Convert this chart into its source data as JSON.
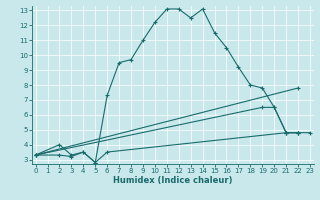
{
  "xlabel": "Humidex (Indice chaleur)",
  "xlim": [
    0,
    23
  ],
  "ylim": [
    3,
    13
  ],
  "yticks": [
    3,
    4,
    5,
    6,
    7,
    8,
    9,
    10,
    11,
    12,
    13
  ],
  "xticks": [
    0,
    1,
    2,
    3,
    4,
    5,
    6,
    7,
    8,
    9,
    10,
    11,
    12,
    13,
    14,
    15,
    16,
    17,
    18,
    19,
    20,
    21,
    22,
    23
  ],
  "bg_color": "#c8e8ec",
  "line_color": "#1a6b6b",
  "lines": [
    {
      "x": [
        0,
        2,
        3,
        4,
        5,
        6,
        7,
        8,
        9,
        10,
        11,
        12,
        13,
        14,
        15,
        16,
        17,
        18,
        19,
        20,
        21,
        22
      ],
      "y": [
        3.3,
        4.0,
        3.3,
        3.5,
        2.8,
        7.3,
        9.5,
        9.7,
        11.0,
        12.2,
        13.1,
        13.1,
        12.5,
        13.1,
        11.5,
        10.5,
        9.2,
        8.0,
        7.8,
        6.5,
        4.8,
        4.8
      ]
    },
    {
      "x": [
        0,
        22
      ],
      "y": [
        3.3,
        7.8
      ]
    },
    {
      "x": [
        0,
        19,
        20,
        21,
        22
      ],
      "y": [
        3.3,
        6.5,
        6.5,
        4.8,
        4.8
      ]
    },
    {
      "x": [
        0,
        2,
        3,
        4,
        5,
        6,
        21,
        22,
        23
      ],
      "y": [
        3.3,
        3.3,
        3.2,
        3.5,
        2.8,
        3.5,
        4.8,
        4.8,
        4.8
      ]
    }
  ]
}
